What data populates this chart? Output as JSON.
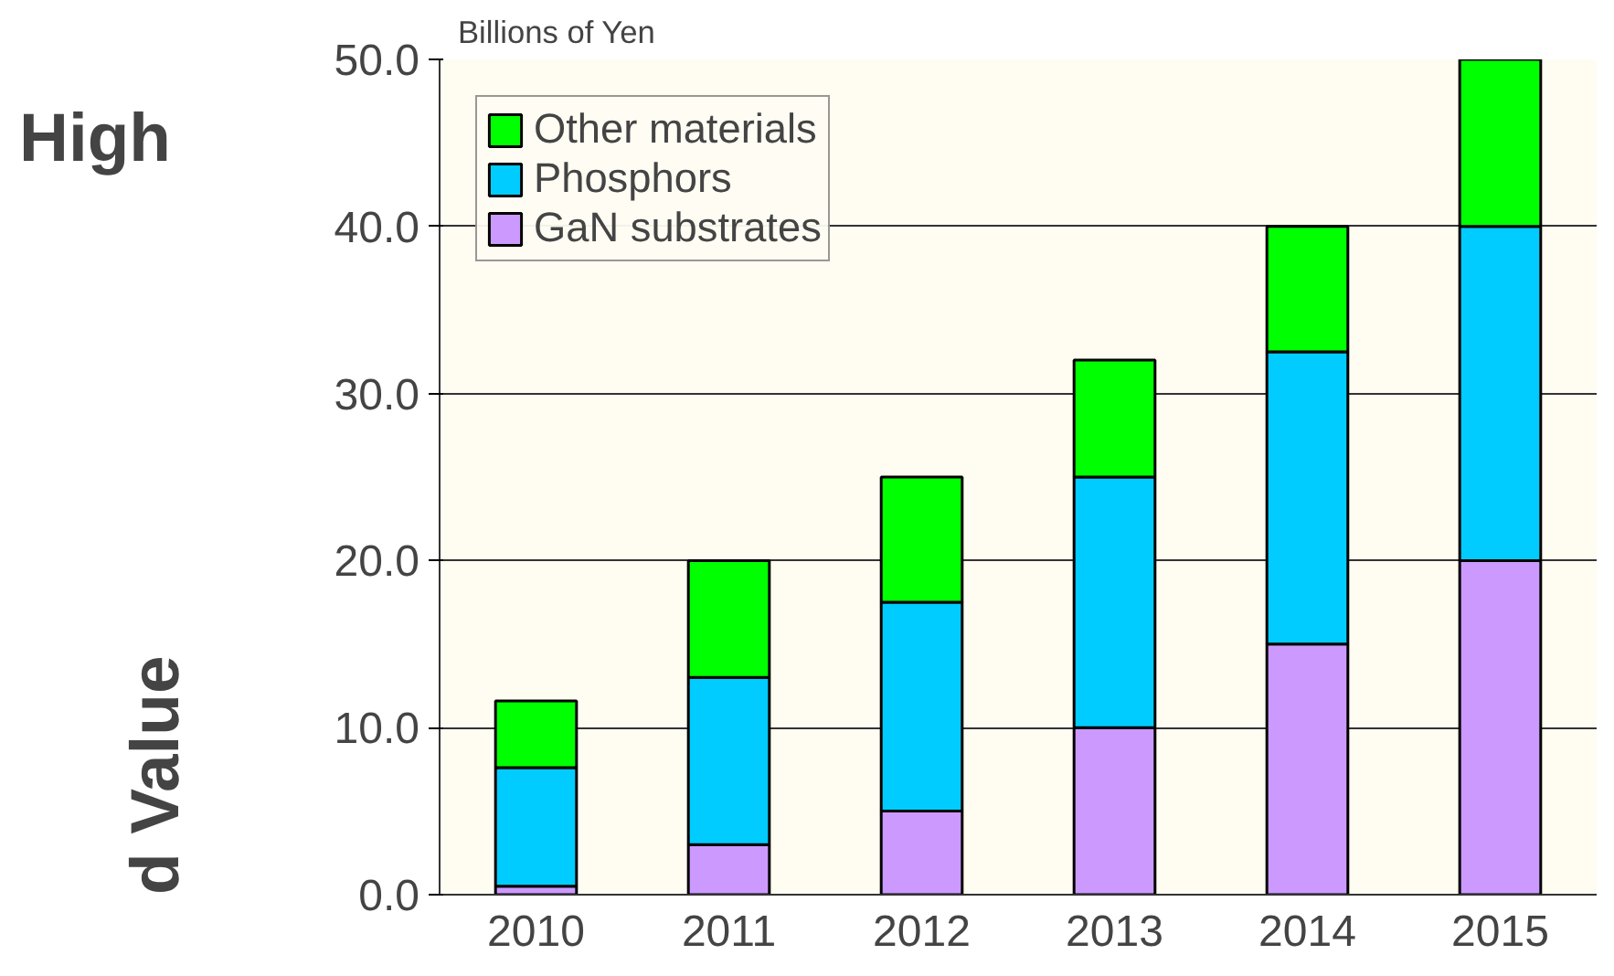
{
  "chart_data": {
    "type": "bar",
    "stacked": true,
    "ylabel": "Billions of Yen",
    "annotations": [
      "High",
      "d Value"
    ],
    "categories": [
      "2010",
      "2011",
      "2012",
      "2013",
      "2014",
      "2015"
    ],
    "series": [
      {
        "name": "GaN substrates",
        "color": "#cc99ff",
        "values": [
          0.5,
          3.0,
          5.0,
          10.0,
          15.0,
          20.0
        ]
      },
      {
        "name": "Phosphors",
        "color": "#00ccff",
        "values": [
          7.1,
          10.0,
          12.5,
          15.0,
          17.5,
          20.0
        ]
      },
      {
        "name": "Other materials",
        "color": "#00ff00",
        "values": [
          4.0,
          7.0,
          7.5,
          7.0,
          7.5,
          10.0
        ]
      }
    ],
    "ylim": [
      0,
      50
    ],
    "yticks": [
      {
        "value": 0,
        "label": "0.0"
      },
      {
        "value": 10,
        "label": "10.0"
      },
      {
        "value": 20,
        "label": "20.0"
      },
      {
        "value": 30,
        "label": "30.0"
      },
      {
        "value": 40,
        "label": "40.0"
      },
      {
        "value": 50,
        "label": "50.0"
      }
    ],
    "grid": "y",
    "legend": "top left"
  }
}
